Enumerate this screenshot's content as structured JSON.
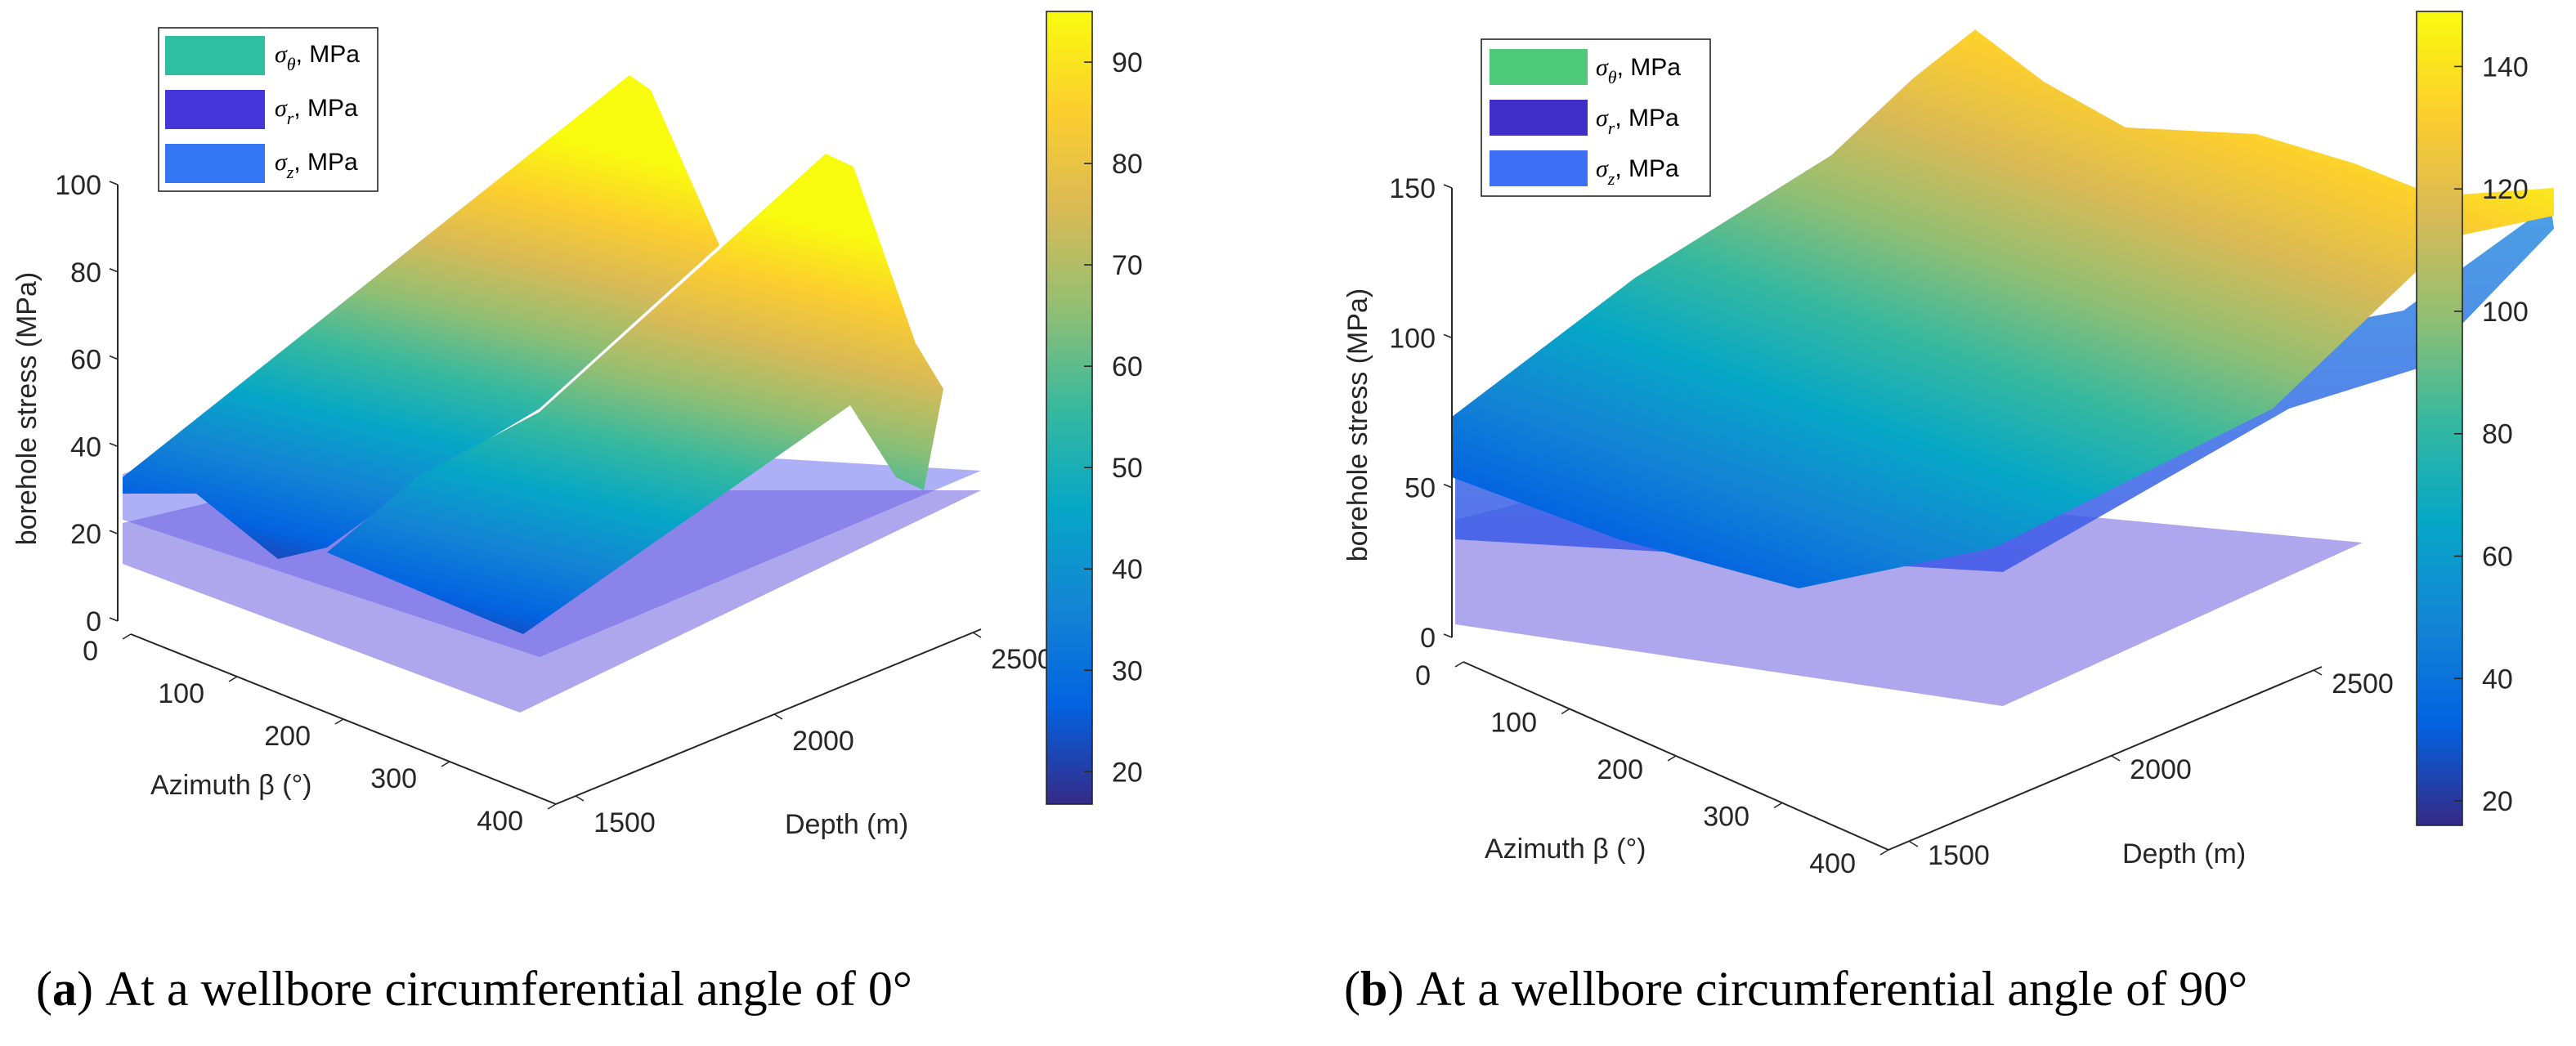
{
  "chart_data": [
    {
      "type": "surface",
      "panel": "a",
      "caption_letter": "a",
      "caption_text": "At a wellbore circumferential angle of 0°",
      "xlabel": "Azimuth β (°)",
      "ylabel": "Depth (m)",
      "zlabel": "borehole stress (MPa)",
      "x_ticks": [
        "0",
        "100",
        "200",
        "300",
        "400"
      ],
      "x_tick_values": [
        0,
        100,
        200,
        300,
        400
      ],
      "y_ticks": [
        "1500",
        "2000",
        "2500"
      ],
      "y_tick_values": [
        1500,
        2000,
        2500
      ],
      "z_ticks": [
        "0",
        "20",
        "40",
        "60",
        "80",
        "100"
      ],
      "z_tick_values": [
        0,
        20,
        40,
        60,
        80,
        100
      ],
      "colorbar": {
        "range": [
          16.8,
          95
        ],
        "ticks": [
          "20",
          "30",
          "40",
          "50",
          "60",
          "70",
          "80",
          "90"
        ],
        "tick_values": [
          20,
          30,
          40,
          50,
          60,
          70,
          80,
          90
        ]
      },
      "legend": [
        {
          "symbol": "σ",
          "sub": "θ",
          "unit": ", MPa",
          "color": "#2ebfa0"
        },
        {
          "symbol": "σ",
          "sub": "r",
          "unit": ", MPa",
          "color": "#4536d9"
        },
        {
          "symbol": "σ",
          "sub": "z",
          "unit": ", MPa",
          "color": "#3377f5"
        }
      ],
      "series_summary": {
        "sigma_theta_max": 95,
        "sigma_theta_min": 20,
        "sigma_r_approx": [
          17,
          30
        ],
        "sigma_z_approx": [
          17,
          35
        ]
      }
    },
    {
      "type": "surface",
      "panel": "b",
      "caption_letter": "b",
      "caption_text": "At a wellbore circumferential angle of 90°",
      "xlabel": "Azimuth β (°)",
      "ylabel": "Depth (m)",
      "zlabel": "borehole stress (MPa)",
      "x_ticks": [
        "0",
        "100",
        "200",
        "300",
        "400"
      ],
      "x_tick_values": [
        0,
        100,
        200,
        300,
        400
      ],
      "y_ticks": [
        "1500",
        "2000",
        "2500"
      ],
      "y_tick_values": [
        1500,
        2000,
        2500
      ],
      "z_ticks": [
        "0",
        "50",
        "100",
        "150"
      ],
      "z_tick_values": [
        0,
        50,
        100,
        150
      ],
      "colorbar": {
        "range": [
          16,
          149
        ],
        "ticks": [
          "20",
          "40",
          "60",
          "80",
          "100",
          "120",
          "140"
        ],
        "tick_values": [
          20,
          40,
          60,
          80,
          100,
          120,
          140
        ]
      },
      "legend": [
        {
          "symbol": "σ",
          "sub": "θ",
          "unit": ", MPa",
          "color": "#4fc97a"
        },
        {
          "symbol": "σ",
          "sub": "r",
          "unit": ", MPa",
          "color": "#3f2ec8"
        },
        {
          "symbol": "σ",
          "sub": "z",
          "unit": ", MPa",
          "color": "#3f6ff5"
        }
      ],
      "series_summary": {
        "sigma_theta_max": 149,
        "sigma_theta_min": 60,
        "sigma_r_approx": [
          17,
          30
        ],
        "sigma_z_approx": [
          30,
          75
        ]
      }
    }
  ],
  "colors": {
    "parula": [
      "#352A87",
      "#0363E1",
      "#1485D4",
      "#06A7C6",
      "#38B99E",
      "#92BF73",
      "#D9BA56",
      "#FCCE2E",
      "#F9FB0E"
    ]
  }
}
